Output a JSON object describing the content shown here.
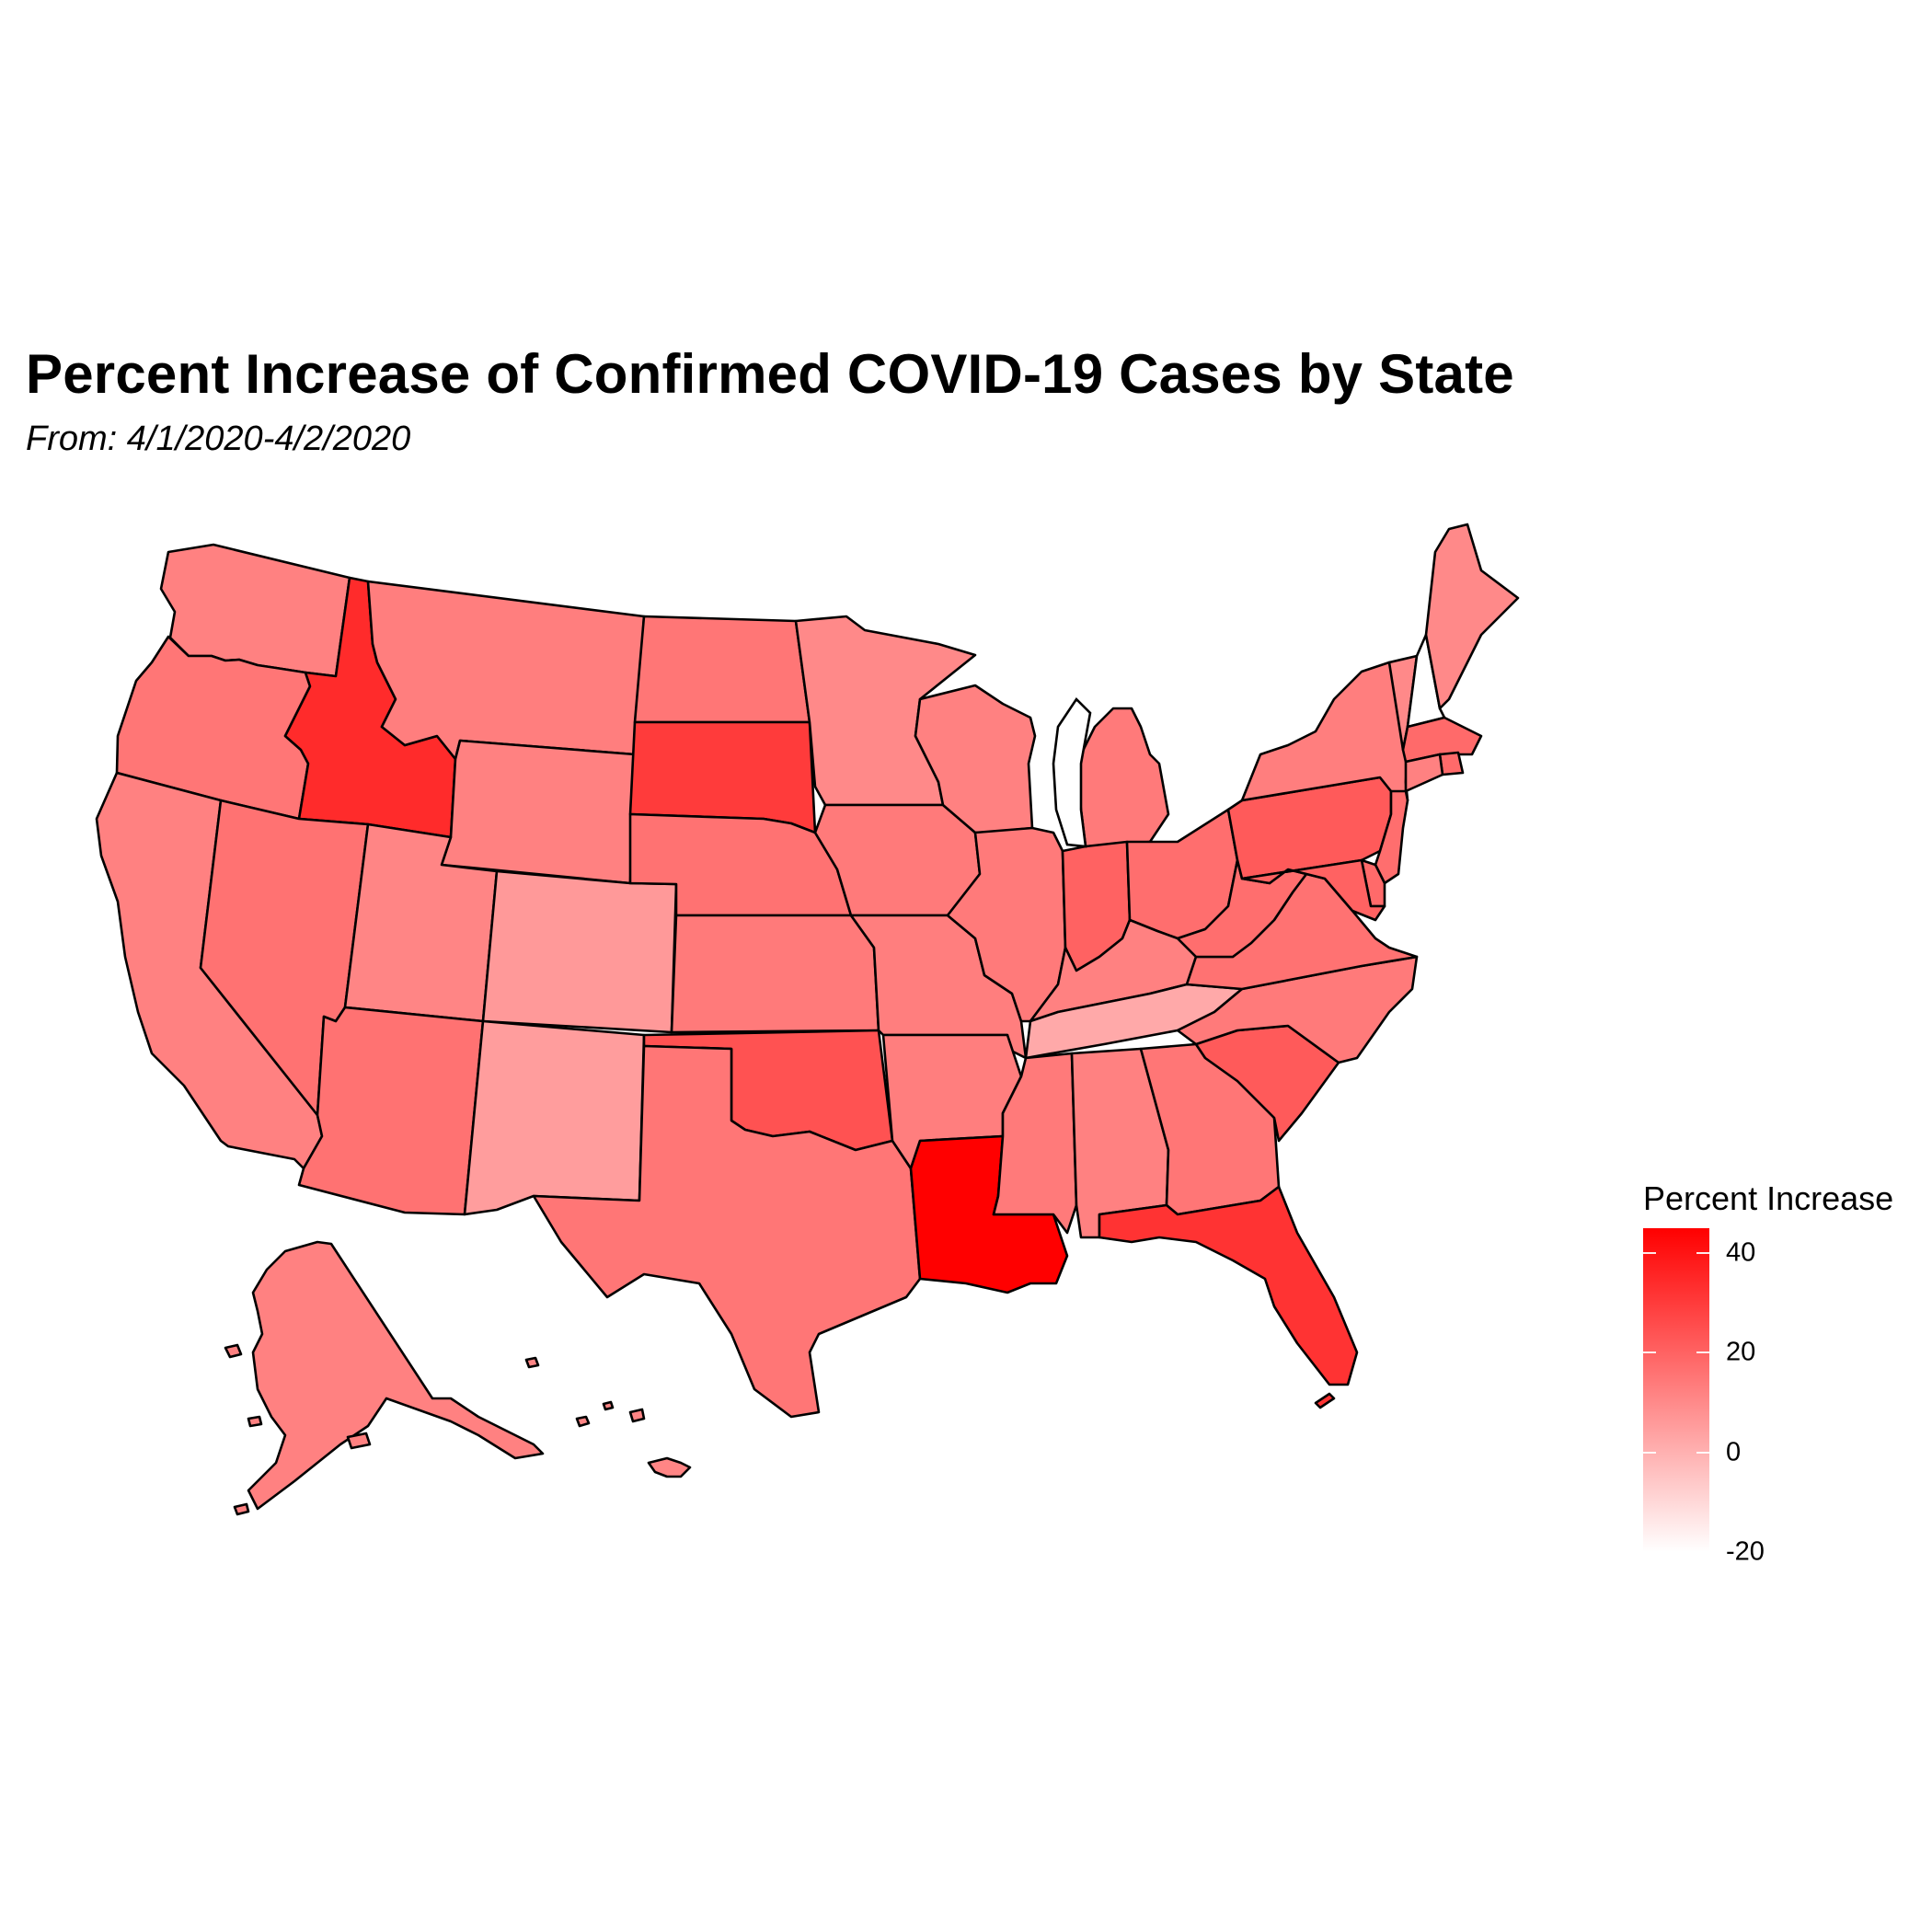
{
  "title": "Percent Increase of Confirmed COVID-19 Cases by State",
  "subtitle": "From: 4/1/2020-4/2/2020",
  "legend": {
    "title": "Percent Increase",
    "ticks": [
      {
        "label": "40",
        "value": 40
      },
      {
        "label": "20",
        "value": 20
      },
      {
        "label": "0",
        "value": 0
      },
      {
        "label": "-20",
        "value": -20
      }
    ],
    "range": [
      -20,
      45
    ],
    "low_color": "#ffffff",
    "high_color": "#ff0000"
  },
  "chart_data": {
    "type": "choropleth",
    "value_label": "Percent Increase",
    "states": [
      {
        "name": "Washington",
        "value": 12
      },
      {
        "name": "Oregon",
        "value": 15
      },
      {
        "name": "California",
        "value": 12
      },
      {
        "name": "Idaho",
        "value": 34
      },
      {
        "name": "Nevada",
        "value": 16
      },
      {
        "name": "Montana",
        "value": 13
      },
      {
        "name": "Wyoming",
        "value": 12
      },
      {
        "name": "Utah",
        "value": 11
      },
      {
        "name": "Arizona",
        "value": 16
      },
      {
        "name": "Colorado",
        "value": 6
      },
      {
        "name": "New Mexico",
        "value": 5
      },
      {
        "name": "North Dakota",
        "value": 15
      },
      {
        "name": "South Dakota",
        "value": 30
      },
      {
        "name": "Nebraska",
        "value": 16
      },
      {
        "name": "Kansas",
        "value": 14
      },
      {
        "name": "Oklahoma",
        "value": 24
      },
      {
        "name": "Texas",
        "value": 15
      },
      {
        "name": "Minnesota",
        "value": 10
      },
      {
        "name": "Iowa",
        "value": 14
      },
      {
        "name": "Missouri",
        "value": 13
      },
      {
        "name": "Arkansas",
        "value": 13
      },
      {
        "name": "Louisiana",
        "value": 45
      },
      {
        "name": "Wisconsin",
        "value": 12
      },
      {
        "name": "Illinois",
        "value": 14
      },
      {
        "name": "Michigan",
        "value": 14
      },
      {
        "name": "Indiana",
        "value": 20
      },
      {
        "name": "Ohio",
        "value": 17
      },
      {
        "name": "Kentucky",
        "value": 12
      },
      {
        "name": "Tennessee",
        "value": 2
      },
      {
        "name": "Mississippi",
        "value": 14
      },
      {
        "name": "Alabama",
        "value": 12
      },
      {
        "name": "Georgia",
        "value": 15
      },
      {
        "name": "Florida",
        "value": 32
      },
      {
        "name": "South Carolina",
        "value": 22
      },
      {
        "name": "North Carolina",
        "value": 14
      },
      {
        "name": "Virginia",
        "value": 16
      },
      {
        "name": "West Virginia",
        "value": 17
      },
      {
        "name": "Pennsylvania",
        "value": 22
      },
      {
        "name": "New York",
        "value": 13
      },
      {
        "name": "Vermont",
        "value": 10
      },
      {
        "name": "New Hampshire",
        "value": -20
      },
      {
        "name": "Maine",
        "value": 10
      },
      {
        "name": "Massachusetts",
        "value": 18
      },
      {
        "name": "Rhode Island",
        "value": 18
      },
      {
        "name": "Connecticut",
        "value": 12
      },
      {
        "name": "New Jersey",
        "value": 17
      },
      {
        "name": "Delaware",
        "value": 18
      },
      {
        "name": "Maryland",
        "value": 20
      },
      {
        "name": "Alaska",
        "value": 12
      },
      {
        "name": "Hawaii",
        "value": 11
      }
    ]
  }
}
